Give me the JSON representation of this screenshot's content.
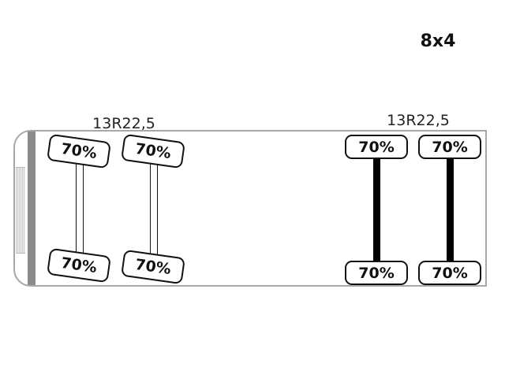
{
  "configuration": "8x4",
  "front_group": {
    "tire_size": "13R22,5",
    "axle_type": "steer",
    "axles": [
      {
        "left": "70%",
        "right": "70%"
      },
      {
        "left": "70%",
        "right": "70%"
      }
    ]
  },
  "rear_group": {
    "tire_size": "13R22,5",
    "axle_type": "drive",
    "axles": [
      {
        "left": "70%",
        "right": "70%"
      },
      {
        "left": "70%",
        "right": "70%"
      }
    ]
  }
}
